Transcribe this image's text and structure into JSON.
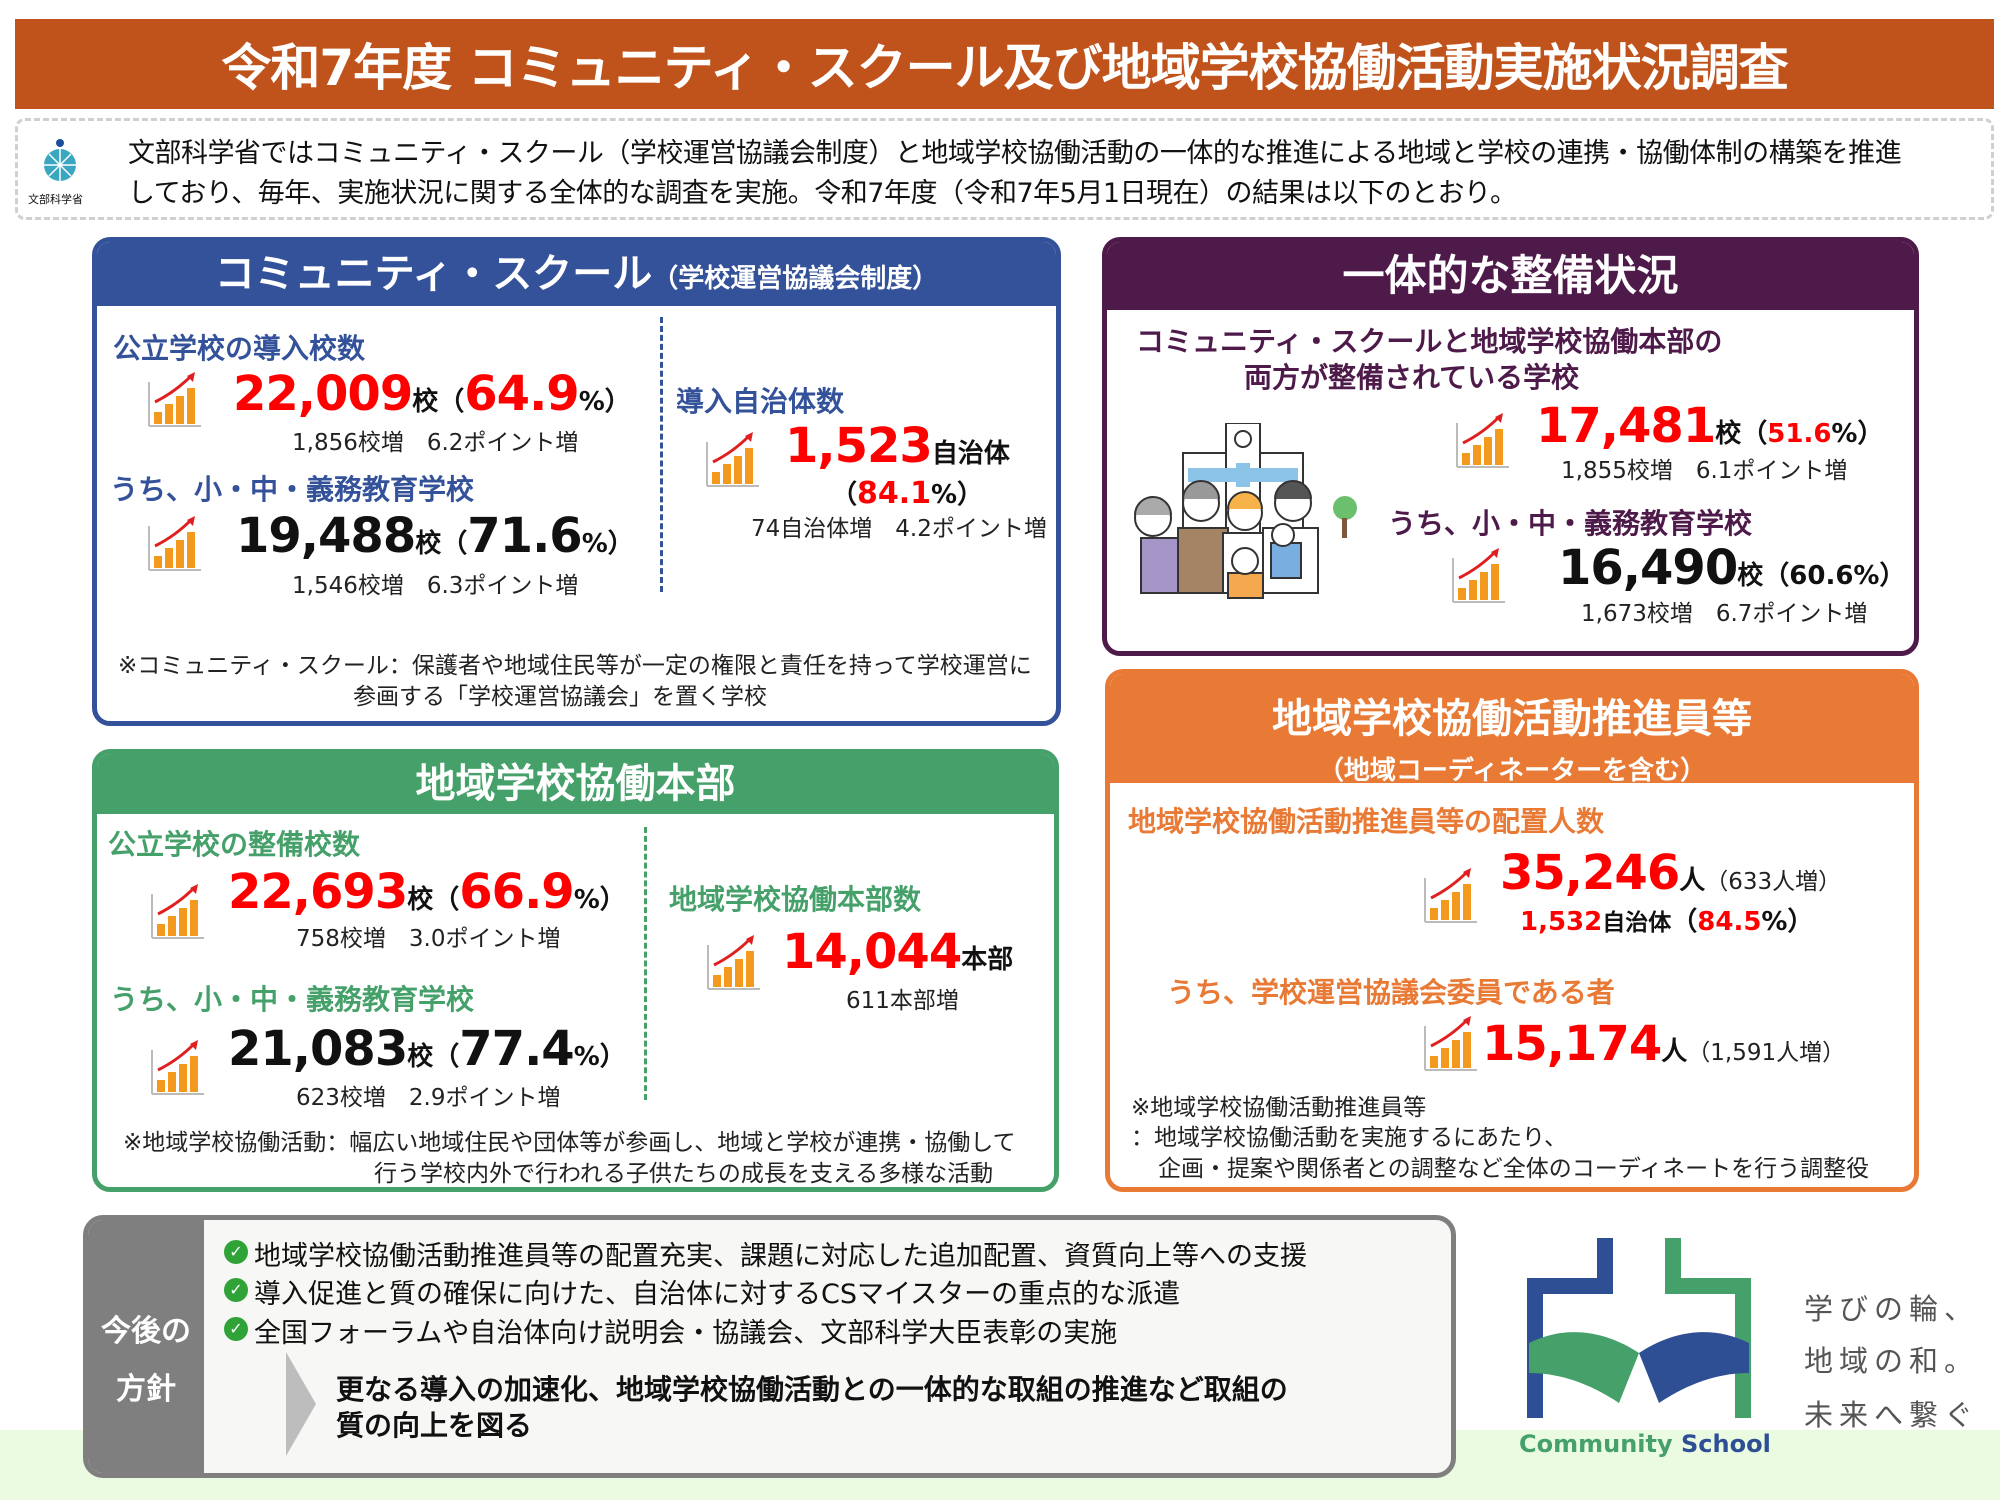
{
  "title": "令和7年度 コミュニティ・スクール及び地域学校協働活動実施状況調査",
  "intro": {
    "logo_text": "文部科学省",
    "line1": "文部科学省ではコミュニティ・スクール（学校運営協議会制度）と地域学校協働活動の一体的な推進による地域と学校の連携・協働体制の構築を推進",
    "line2": "しており、毎年、実施状況に関する全体的な調査を実施。令和7年度（令和7年5月1日現在）の結果は以下のとおり。"
  },
  "community_school": {
    "title": "コミュニティ・スクール",
    "title_sub": "（学校運営協議会制度）",
    "public_heading": "公立学校の導入校数",
    "public_value": "22,009",
    "public_unit": "校",
    "public_pct": "64.9",
    "public_delta": "1,856校増　6.2ポイント増",
    "sub_heading": "うち、小・中・義務教育学校",
    "sub_value": "19,488",
    "sub_unit": "校",
    "sub_pct": "71.6",
    "sub_delta": "1,546校増　6.3ポイント増",
    "muni_heading": "導入自治体数",
    "muni_value": "1,523",
    "muni_unit": "自治体",
    "muni_pct": "84.1",
    "muni_delta": "74自治体増　4.2ポイント増",
    "note1": "※コミュニティ・スクール：保護者や地域住民等が一定の権限と責任を持って学校運営に",
    "note2": "参画する「学校運営協議会」を置く学校"
  },
  "integrated": {
    "title": "一体的な整備状況",
    "heading1": "コミュニティ・スクールと地域学校協働本部の",
    "heading2": "両方が整備されている学校",
    "value": "17,481",
    "unit": "校",
    "pct": "51.6",
    "delta": "1,855校増　6.1ポイント増",
    "sub_heading": "うち、小・中・義務教育学校",
    "sub_value": "16,490",
    "sub_unit": "校",
    "sub_pct": "60.6",
    "sub_delta": "1,673校増　6.7ポイント増"
  },
  "headquarters": {
    "title": "地域学校協働本部",
    "public_heading": "公立学校の整備校数",
    "public_value": "22,693",
    "public_unit": "校",
    "public_pct": "66.9",
    "public_delta": "758校増　3.0ポイント増",
    "sub_heading": "うち、小・中・義務教育学校",
    "sub_value": "21,083",
    "sub_unit": "校",
    "sub_pct": "77.4",
    "sub_delta": "623校増　2.9ポイント増",
    "hq_heading": "地域学校協働本部数",
    "hq_value": "14,044",
    "hq_unit": "本部",
    "hq_delta": "611本部増",
    "note1": "※地域学校協働活動：幅広い地域住民や団体等が参画し、地域と学校が連携・協働して",
    "note2": "行う学校内外で行われる子供たちの成長を支える多様な活動"
  },
  "promoters": {
    "title": "地域学校協働活動推進員等",
    "title_sub": "（地域コーディネーターを含む）",
    "heading": "地域学校協働活動推進員等の配置人数",
    "value": "35,246",
    "unit": "人",
    "delta": "（633人増）",
    "muni_value": "1,532",
    "muni_unit": "自治体",
    "muni_pct": "84.5",
    "sub_heading": "うち、学校運営協議会委員である者",
    "sub_value": "15,174",
    "sub_unit": "人",
    "sub_delta": "（1,591人増）",
    "note1": "※地域学校協働活動推進員等",
    "note2": "：地域学校協働活動を実施するにあたり、",
    "note3": "企画・提案や関係者との調整など全体のコーディネートを行う調整役"
  },
  "policy": {
    "label1": "今後の",
    "label2": "方針",
    "items": [
      "地域学校協働活動推進員等の配置充実、課題に対応した追加配置、資質向上等への支援",
      "導入促進と質の確保に向けた、自治体に対するCSマイスターの重点的な派遣",
      "全国フォーラムや自治体向け説明会・協議会、文部科学大臣表彰の実施"
    ],
    "conclusion1": "更なる導入の加速化、地域学校協働活動との一体的な取組の推進など取組の",
    "conclusion2": "質の向上を図る"
  },
  "brand": {
    "logo_text": "Community School",
    "tagline": [
      "学びの輪、",
      "地域の和。",
      "未来へ繋ぐ"
    ]
  },
  "colors": {
    "title": "#c0531b",
    "blue": "#34529a",
    "purple": "#4e1a4a",
    "green": "#45a06a",
    "orange": "#e87a35",
    "highlight": "#ff0000"
  }
}
